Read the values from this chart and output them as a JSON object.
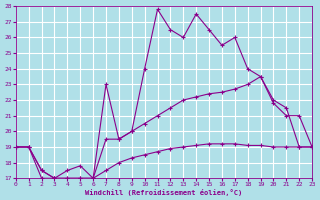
{
  "xlabel": "Windchill (Refroidissement éolien,°C)",
  "bg_color": "#b0e0e8",
  "grid_color": "#ffffff",
  "line_color": "#8b008b",
  "xlim": [
    0,
    23
  ],
  "ylim": [
    17,
    28
  ],
  "yticks": [
    17,
    18,
    19,
    20,
    21,
    22,
    23,
    24,
    25,
    26,
    27,
    28
  ],
  "xticks": [
    0,
    1,
    2,
    3,
    4,
    5,
    6,
    7,
    8,
    9,
    10,
    11,
    12,
    13,
    14,
    15,
    16,
    17,
    18,
    19,
    20,
    21,
    22,
    23
  ],
  "line1_x": [
    0,
    1,
    2,
    3,
    4,
    5,
    6,
    7,
    8,
    9,
    10,
    11,
    12,
    13,
    14,
    15,
    16,
    17,
    18,
    19,
    20,
    21,
    22,
    23
  ],
  "line1_y": [
    19.0,
    19.0,
    17.0,
    17.0,
    17.0,
    17.0,
    17.0,
    17.5,
    18.0,
    18.3,
    18.5,
    18.7,
    18.9,
    19.0,
    19.1,
    19.2,
    19.2,
    19.2,
    19.1,
    19.1,
    19.0,
    19.0,
    19.0,
    19.0
  ],
  "line2_x": [
    0,
    1,
    2,
    3,
    4,
    5,
    6,
    7,
    8,
    9,
    10,
    11,
    12,
    13,
    14,
    15,
    16,
    17,
    18,
    19,
    20,
    21,
    22,
    23
  ],
  "line2_y": [
    19.0,
    19.0,
    17.5,
    17.0,
    17.0,
    17.0,
    17.0,
    19.5,
    19.5,
    20.0,
    20.5,
    21.0,
    21.5,
    22.0,
    22.2,
    22.4,
    22.5,
    22.7,
    23.0,
    23.5,
    22.0,
    21.5,
    19.0,
    19.0
  ],
  "line3_x": [
    0,
    1,
    2,
    3,
    4,
    5,
    6,
    7,
    8,
    9,
    10,
    11,
    12,
    13,
    14,
    15,
    16,
    17,
    18,
    19,
    20,
    21,
    22,
    23
  ],
  "line3_y": [
    19.0,
    19.0,
    17.5,
    17.0,
    17.5,
    17.8,
    17.0,
    23.0,
    19.5,
    20.0,
    24.0,
    27.8,
    26.5,
    26.0,
    27.5,
    26.5,
    25.5,
    26.0,
    24.0,
    23.5,
    21.8,
    21.0,
    21.0,
    19.0
  ]
}
